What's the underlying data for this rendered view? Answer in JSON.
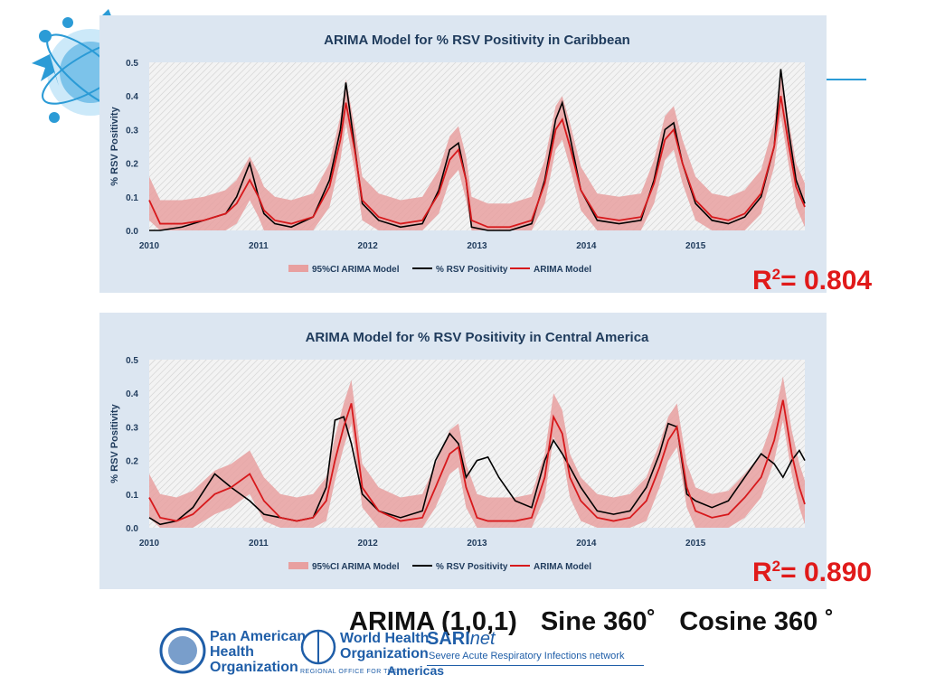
{
  "r2": [
    {
      "prefix": "R",
      "sup": "2",
      "value": "= 0.804"
    },
    {
      "prefix": "R",
      "sup": "2",
      "value": "= 0.890"
    }
  ],
  "model_label": {
    "arima": "ARIMA (1,0,1)",
    "sine": "Sine 360˚",
    "cosine": "Cosine 360 ˚"
  },
  "logos": {
    "paho": [
      "Pan American",
      "Health",
      "Organization"
    ],
    "who": [
      "World Health",
      "Organization"
    ],
    "who_regional": "REGIONAL OFFICE FOR THE",
    "who_americas": "Americas",
    "sarinet_a": "SARI",
    "sarinet_b": "net",
    "sarinet_tagline": "Severe Acute Respiratory Infections network"
  },
  "colors": {
    "observed": "#000000",
    "model": "#d7191c",
    "ci": "#e8a0a0",
    "panel_bg": "#dce6f1",
    "accent": "#2b9bd6"
  },
  "chart_data": [
    {
      "type": "line",
      "title": "ARIMA Model for % RSV Positivity in Caribbean",
      "ylabel": "% RSV Positivity",
      "xlabel": "",
      "x_ticks": [
        "2010",
        "2011",
        "2012",
        "2013",
        "2014",
        "2015"
      ],
      "y_ticks": [
        "0.0",
        "0.1",
        "0.2",
        "0.3",
        "0.4",
        "0.5"
      ],
      "ylim": [
        0,
        0.5
      ],
      "xlim": [
        2010,
        2016
      ],
      "grid": true,
      "legend_position": "bottom",
      "legend": [
        "95%CI ARIMA Model",
        "% RSV Positivity",
        "ARIMA Model"
      ],
      "series": [
        {
          "name": "% RSV Positivity",
          "x": [
            2010.0,
            2010.1,
            2010.3,
            2010.5,
            2010.7,
            2010.8,
            2010.92,
            2011.0,
            2011.05,
            2011.15,
            2011.3,
            2011.5,
            2011.65,
            2011.75,
            2011.8,
            2011.88,
            2011.95,
            2012.1,
            2012.3,
            2012.5,
            2012.65,
            2012.75,
            2012.83,
            2012.9,
            2012.95,
            2013.1,
            2013.3,
            2013.5,
            2013.62,
            2013.72,
            2013.78,
            2013.85,
            2013.95,
            2014.1,
            2014.3,
            2014.5,
            2014.62,
            2014.72,
            2014.8,
            2014.88,
            2015.0,
            2015.15,
            2015.3,
            2015.45,
            2015.6,
            2015.72,
            2015.78,
            2015.85,
            2015.92,
            2016.0
          ],
          "y": [
            0.0,
            0.0,
            0.01,
            0.03,
            0.05,
            0.1,
            0.2,
            0.1,
            0.05,
            0.02,
            0.01,
            0.04,
            0.15,
            0.3,
            0.44,
            0.25,
            0.08,
            0.03,
            0.01,
            0.02,
            0.12,
            0.24,
            0.26,
            0.15,
            0.01,
            0.0,
            0.0,
            0.02,
            0.15,
            0.33,
            0.38,
            0.28,
            0.12,
            0.03,
            0.02,
            0.03,
            0.15,
            0.3,
            0.32,
            0.2,
            0.08,
            0.03,
            0.02,
            0.04,
            0.1,
            0.25,
            0.48,
            0.3,
            0.15,
            0.08
          ]
        },
        {
          "name": "ARIMA Model",
          "x": [
            2010.0,
            2010.1,
            2010.3,
            2010.5,
            2010.7,
            2010.8,
            2010.92,
            2011.0,
            2011.05,
            2011.15,
            2011.3,
            2011.5,
            2011.65,
            2011.75,
            2011.8,
            2011.88,
            2011.95,
            2012.1,
            2012.3,
            2012.5,
            2012.65,
            2012.75,
            2012.83,
            2012.9,
            2012.95,
            2013.1,
            2013.3,
            2013.5,
            2013.62,
            2013.72,
            2013.78,
            2013.85,
            2013.95,
            2014.1,
            2014.3,
            2014.5,
            2014.62,
            2014.72,
            2014.8,
            2014.88,
            2015.0,
            2015.15,
            2015.3,
            2015.45,
            2015.6,
            2015.72,
            2015.78,
            2015.85,
            2015.92,
            2016.0
          ],
          "y": [
            0.09,
            0.02,
            0.02,
            0.03,
            0.05,
            0.08,
            0.15,
            0.1,
            0.06,
            0.03,
            0.02,
            0.04,
            0.13,
            0.27,
            0.38,
            0.24,
            0.09,
            0.04,
            0.02,
            0.03,
            0.11,
            0.21,
            0.24,
            0.15,
            0.03,
            0.01,
            0.01,
            0.03,
            0.14,
            0.3,
            0.33,
            0.25,
            0.12,
            0.04,
            0.03,
            0.04,
            0.14,
            0.27,
            0.3,
            0.2,
            0.09,
            0.04,
            0.03,
            0.05,
            0.11,
            0.25,
            0.4,
            0.26,
            0.13,
            0.07
          ]
        }
      ]
    },
    {
      "type": "line",
      "title": "ARIMA Model for % RSV Positivity in Central America",
      "ylabel": "% RSV Positivity",
      "xlabel": "",
      "x_ticks": [
        "2010",
        "2011",
        "2012",
        "2013",
        "2014",
        "2015"
      ],
      "y_ticks": [
        "0.0",
        "0.1",
        "0.2",
        "0.3",
        "0.4",
        "0.5"
      ],
      "ylim": [
        0,
        0.5
      ],
      "xlim": [
        2010,
        2016
      ],
      "grid": true,
      "legend_position": "bottom",
      "legend": [
        "95%CI ARIMA Model",
        "% RSV Positivity",
        "ARIMA Model"
      ],
      "series": [
        {
          "name": "% RSV Positivity",
          "x": [
            2010.0,
            2010.1,
            2010.25,
            2010.4,
            2010.6,
            2010.75,
            2010.92,
            2011.05,
            2011.2,
            2011.35,
            2011.5,
            2011.62,
            2011.7,
            2011.78,
            2011.85,
            2011.95,
            2012.1,
            2012.3,
            2012.5,
            2012.62,
            2012.75,
            2012.83,
            2012.9,
            2013.0,
            2013.1,
            2013.2,
            2013.35,
            2013.5,
            2013.62,
            2013.7,
            2013.78,
            2013.85,
            2013.95,
            2014.1,
            2014.25,
            2014.4,
            2014.55,
            2014.67,
            2014.75,
            2014.83,
            2014.92,
            2015.0,
            2015.15,
            2015.3,
            2015.45,
            2015.6,
            2015.72,
            2015.8,
            2015.88,
            2015.95,
            2016.0
          ],
          "y": [
            0.03,
            0.01,
            0.02,
            0.06,
            0.16,
            0.12,
            0.08,
            0.04,
            0.03,
            0.02,
            0.03,
            0.12,
            0.32,
            0.33,
            0.25,
            0.1,
            0.05,
            0.03,
            0.05,
            0.2,
            0.28,
            0.25,
            0.15,
            0.2,
            0.21,
            0.15,
            0.08,
            0.06,
            0.2,
            0.26,
            0.22,
            0.18,
            0.12,
            0.05,
            0.04,
            0.05,
            0.12,
            0.22,
            0.31,
            0.3,
            0.1,
            0.08,
            0.06,
            0.08,
            0.15,
            0.22,
            0.19,
            0.15,
            0.2,
            0.23,
            0.2
          ]
        },
        {
          "name": "ARIMA Model",
          "x": [
            2010.0,
            2010.1,
            2010.25,
            2010.4,
            2010.6,
            2010.75,
            2010.92,
            2011.05,
            2011.2,
            2011.35,
            2011.5,
            2011.62,
            2011.7,
            2011.78,
            2011.85,
            2011.95,
            2012.1,
            2012.3,
            2012.5,
            2012.62,
            2012.75,
            2012.83,
            2012.9,
            2013.0,
            2013.1,
            2013.2,
            2013.35,
            2013.5,
            2013.62,
            2013.7,
            2013.78,
            2013.85,
            2013.95,
            2014.1,
            2014.25,
            2014.4,
            2014.55,
            2014.67,
            2014.75,
            2014.83,
            2014.92,
            2015.0,
            2015.15,
            2015.3,
            2015.45,
            2015.6,
            2015.72,
            2015.8,
            2015.88,
            2015.95,
            2016.0
          ],
          "y": [
            0.09,
            0.03,
            0.02,
            0.04,
            0.1,
            0.12,
            0.16,
            0.08,
            0.03,
            0.02,
            0.03,
            0.08,
            0.2,
            0.3,
            0.37,
            0.12,
            0.05,
            0.02,
            0.03,
            0.12,
            0.22,
            0.24,
            0.12,
            0.03,
            0.02,
            0.02,
            0.02,
            0.03,
            0.15,
            0.33,
            0.28,
            0.15,
            0.08,
            0.03,
            0.02,
            0.03,
            0.08,
            0.18,
            0.26,
            0.3,
            0.12,
            0.05,
            0.03,
            0.04,
            0.09,
            0.15,
            0.26,
            0.38,
            0.22,
            0.12,
            0.07
          ]
        }
      ]
    }
  ]
}
